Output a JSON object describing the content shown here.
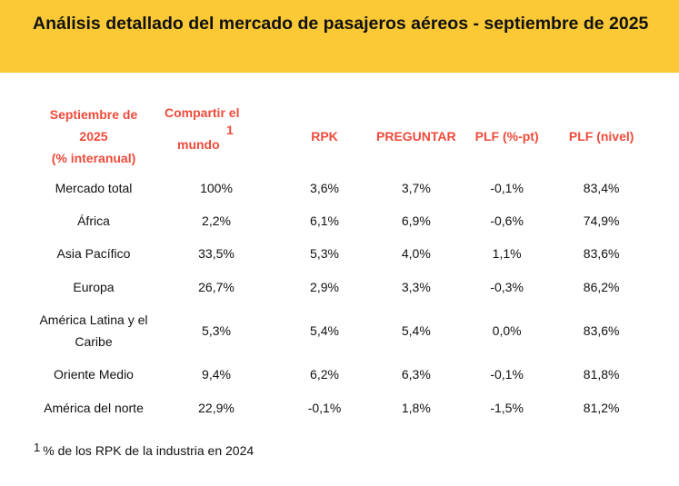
{
  "header": {
    "title": "Análisis detallado del mercado de pasajeros aéreos - septiembre de 2025"
  },
  "table": {
    "columns": [
      "Septiembre de 2025 (% interanual)",
      "Compartir el mundo",
      "RPK",
      "PREGUNTAR",
      "PLF (%-pt)",
      "PLF (nivel)"
    ],
    "col1_lines": [
      "Septiembre de",
      "2025",
      "(% interanual)"
    ],
    "col2_lines": [
      "Compartir el",
      "1",
      "mundo"
    ],
    "rows": [
      [
        "Mercado total",
        "100%",
        "3,6%",
        "3,7%",
        "-0,1%",
        "83,4%"
      ],
      [
        "África",
        "2,2%",
        "6,1%",
        "6,9%",
        "-0,6%",
        "74,9%"
      ],
      [
        "Asia Pacífico",
        "33,5%",
        "5,3%",
        "4,0%",
        "1,1%",
        "83,6%"
      ],
      [
        "Europa",
        "26,7%",
        "2,9%",
        "3,3%",
        "-0,3%",
        "86,2%"
      ],
      [
        "América Latina y el Caribe",
        "5,3%",
        "5,4%",
        "5,4%",
        "0,0%",
        "83,6%"
      ],
      [
        "Oriente Medio",
        "9,4%",
        "6,2%",
        "6,3%",
        "-0,1%",
        "81,8%"
      ],
      [
        "América del norte",
        "22,9%",
        "-0,1%",
        "1,8%",
        "-1,5%",
        "81,2%"
      ]
    ]
  },
  "footnote": {
    "marker": "1",
    "text": "% de los RPK de la industria en 2024"
  },
  "colors": {
    "header_bg": "#fac935",
    "column_header": "#ef4a3a"
  }
}
